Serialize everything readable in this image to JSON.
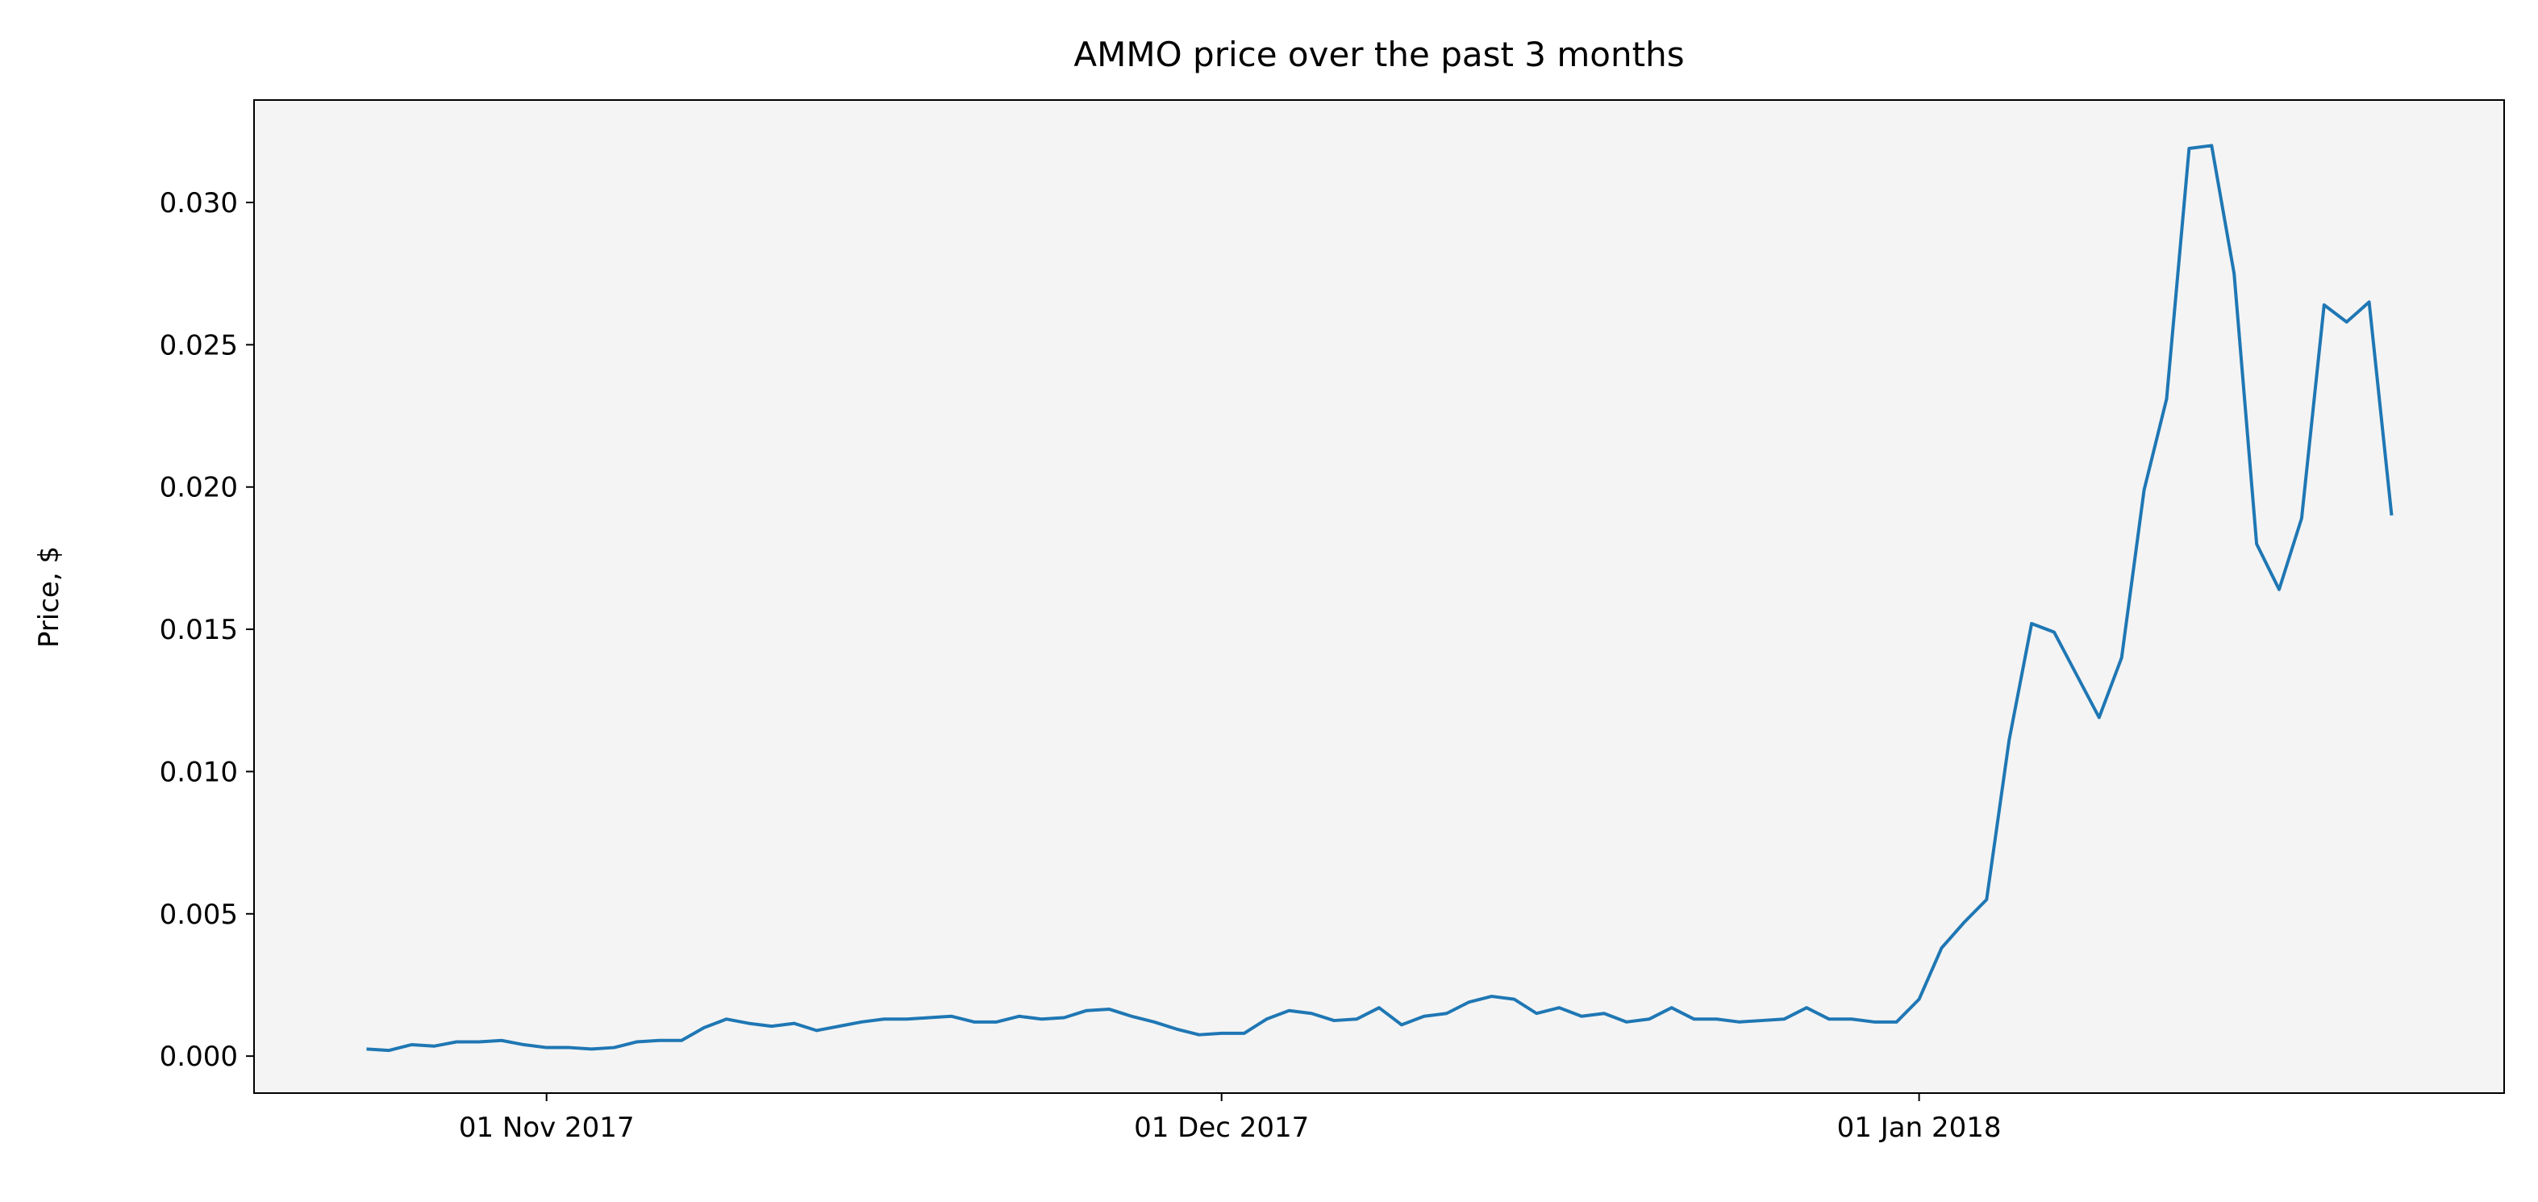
{
  "chart_data": {
    "type": "line",
    "title": "AMMO price over the past 3 months",
    "y_label": "Price, $",
    "x": [
      "2017-10-24",
      "2017-10-25",
      "2017-10-26",
      "2017-10-27",
      "2017-10-28",
      "2017-10-29",
      "2017-10-30",
      "2017-10-31",
      "2017-11-01",
      "2017-11-02",
      "2017-11-03",
      "2017-11-04",
      "2017-11-05",
      "2017-11-06",
      "2017-11-07",
      "2017-11-08",
      "2017-11-09",
      "2017-11-10",
      "2017-11-11",
      "2017-11-12",
      "2017-11-13",
      "2017-11-14",
      "2017-11-15",
      "2017-11-16",
      "2017-11-17",
      "2017-11-18",
      "2017-11-19",
      "2017-11-20",
      "2017-11-21",
      "2017-11-22",
      "2017-11-23",
      "2017-11-24",
      "2017-11-25",
      "2017-11-26",
      "2017-11-27",
      "2017-11-28",
      "2017-11-29",
      "2017-11-30",
      "2017-12-01",
      "2017-12-02",
      "2017-12-03",
      "2017-12-04",
      "2017-12-05",
      "2017-12-06",
      "2017-12-07",
      "2017-12-08",
      "2017-12-09",
      "2017-12-10",
      "2017-12-11",
      "2017-12-12",
      "2017-12-13",
      "2017-12-14",
      "2017-12-15",
      "2017-12-16",
      "2017-12-17",
      "2017-12-18",
      "2017-12-19",
      "2017-12-20",
      "2017-12-21",
      "2017-12-22",
      "2017-12-23",
      "2017-12-24",
      "2017-12-25",
      "2017-12-26",
      "2017-12-27",
      "2017-12-28",
      "2017-12-29",
      "2017-12-30",
      "2017-12-31",
      "2018-01-01",
      "2018-01-02",
      "2018-01-03",
      "2018-01-04",
      "2018-01-05",
      "2018-01-06",
      "2018-01-07",
      "2018-01-08",
      "2018-01-09",
      "2018-01-10",
      "2018-01-11",
      "2018-01-12",
      "2018-01-13",
      "2018-01-14",
      "2018-01-15",
      "2018-01-16",
      "2018-01-17",
      "2018-01-18",
      "2018-01-19",
      "2018-01-20",
      "2018-01-21",
      "2018-01-22"
    ],
    "series": [
      {
        "name": "AMMO",
        "color": "#1f77b4",
        "values": [
          0.00025,
          0.0002,
          0.0004,
          0.00035,
          0.0005,
          0.0005,
          0.00055,
          0.0004,
          0.0003,
          0.0003,
          0.00025,
          0.0003,
          0.0005,
          0.00055,
          0.00055,
          0.001,
          0.0013,
          0.00115,
          0.00105,
          0.00115,
          0.0009,
          0.00105,
          0.0012,
          0.0013,
          0.0013,
          0.00135,
          0.0014,
          0.0012,
          0.0012,
          0.0014,
          0.0013,
          0.00135,
          0.0016,
          0.00165,
          0.0014,
          0.0012,
          0.00095,
          0.00075,
          0.0008,
          0.0008,
          0.0013,
          0.0016,
          0.0015,
          0.00125,
          0.0013,
          0.0017,
          0.0011,
          0.0014,
          0.0015,
          0.0019,
          0.0021,
          0.002,
          0.0015,
          0.0017,
          0.0014,
          0.0015,
          0.0012,
          0.0013,
          0.0017,
          0.0013,
          0.0013,
          0.0012,
          0.00125,
          0.0013,
          0.0017,
          0.0013,
          0.0013,
          0.0012,
          0.0012,
          0.002,
          0.0038,
          0.0047,
          0.0055,
          0.0111,
          0.0152,
          0.0149,
          0.0134,
          0.0119,
          0.014,
          0.0199,
          0.0231,
          0.0319,
          0.032,
          0.0275,
          0.018,
          0.0164,
          0.0189,
          0.0264,
          0.0258,
          0.0265,
          0.019
        ]
      }
    ],
    "xlim": [
      "2017-10-19",
      "2018-01-27"
    ],
    "xticks": [
      {
        "value": "2017-11-01",
        "label": "01 Nov 2017"
      },
      {
        "value": "2017-12-01",
        "label": "01 Dec 2017"
      },
      {
        "value": "2018-01-01",
        "label": "01 Jan 2018"
      }
    ],
    "ylim": [
      -0.0013,
      0.0336
    ],
    "yticks": [
      {
        "value": 0,
        "label": "0.000"
      },
      {
        "value": 0.005,
        "label": "0.005"
      },
      {
        "value": 0.01,
        "label": "0.010"
      },
      {
        "value": 0.015,
        "label": "0.015"
      },
      {
        "value": 0.02,
        "label": "0.020"
      },
      {
        "value": 0.025,
        "label": "0.025"
      },
      {
        "value": 0.03,
        "label": "0.030"
      }
    ],
    "background": "#f4f4f4"
  }
}
